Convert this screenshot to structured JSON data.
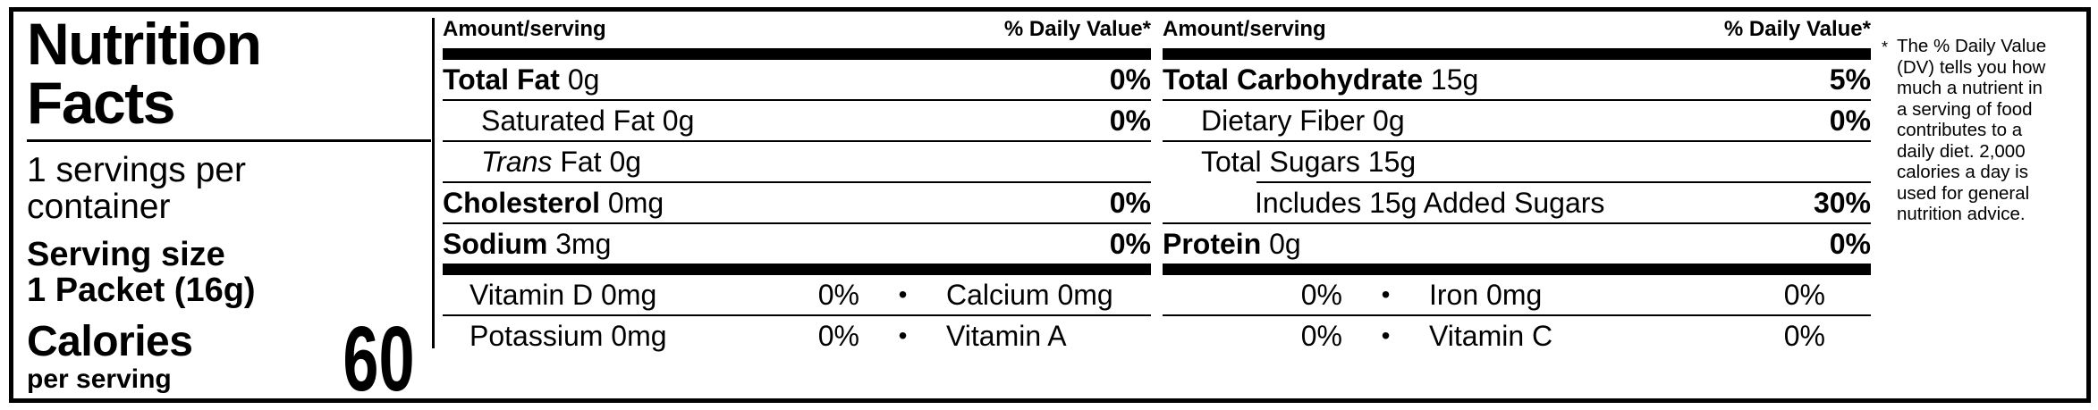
{
  "label": {
    "title": "Nutrition Facts",
    "servings_per_container": "1 servings per container",
    "serving_size_label": "Serving size",
    "serving_size_value": "1 Packet (16g)",
    "calories_label": "Calories",
    "calories_sublabel": "per serving",
    "calories_value": "60"
  },
  "columns": {
    "amount_header": "Amount/serving",
    "dv_header": "% Daily Value*",
    "col1_rows": [
      {
        "bold": "Total Fat",
        "italic": "",
        "rest": " 0g",
        "dv": "0%"
      },
      {
        "bold": "",
        "italic": "",
        "rest": "Saturated Fat 0g",
        "dv": "0%"
      },
      {
        "bold": "",
        "italic": "Trans",
        "rest": " Fat 0g",
        "dv": ""
      },
      {
        "bold": "Cholesterol",
        "italic": "",
        "rest": " 0mg",
        "dv": "0%"
      },
      {
        "bold": "Sodium",
        "italic": "",
        "rest": " 3mg",
        "dv": "0%"
      }
    ],
    "col2_rows": [
      {
        "bold": "Total Carbohydrate",
        "italic": "",
        "rest": " 15g",
        "dv": "5%"
      },
      {
        "bold": "",
        "italic": "",
        "rest": "Dietary Fiber 0g",
        "dv": "0%"
      },
      {
        "bold": "",
        "italic": "",
        "rest": "Total Sugars 15g",
        "dv": ""
      },
      {
        "bold": "",
        "italic": "",
        "rest": "Includes 15g Added Sugars",
        "dv": "30%"
      },
      {
        "bold": "Protein",
        "italic": "",
        "rest": " 0g",
        "dv": "0%"
      }
    ]
  },
  "vitamins": {
    "bullet": "•",
    "rows": [
      {
        "n1": "Vitamin D  0mg",
        "p1": "0%",
        "n2": "Calcium 0mg",
        "p2": "0%",
        "n3": "Iron 0mg",
        "p3": "0%"
      },
      {
        "n1": "Potassium 0mg",
        "p1": "0%",
        "n2": "Vitamin A",
        "p2": "0%",
        "n3": "Vitamin C",
        "p3": "0%"
      }
    ]
  },
  "footnote": {
    "marker": "*",
    "lines": [
      "The % Daily Value",
      "(DV) tells you how",
      "much a nutrient in",
      "a serving of food",
      "contributes to a",
      "daily diet. 2,000",
      "calories a day is",
      "used for general",
      "nutrition advice."
    ]
  },
  "colors": {
    "ink": "#000000",
    "paper": "#ffffff"
  }
}
